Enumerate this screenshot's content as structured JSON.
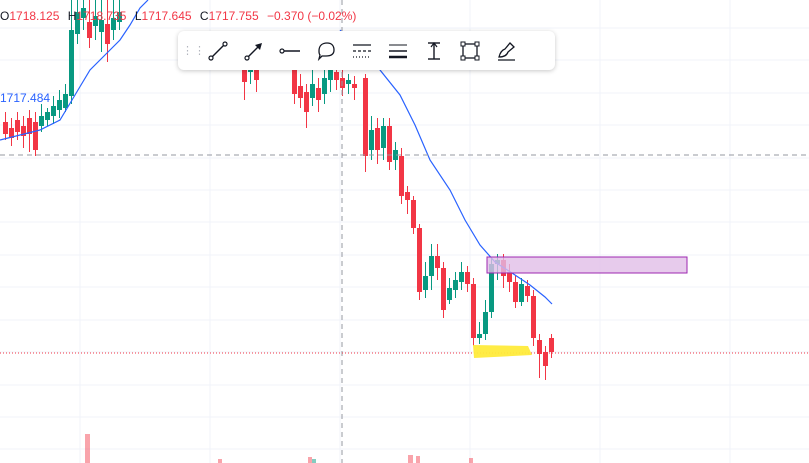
{
  "legend": {
    "o_key": "O",
    "o_val": "1718.125",
    "h_key": "H",
    "h_val": "1718.735",
    "l_key": "L",
    "l_val": "1717.645",
    "c_key": "C",
    "c_val": "1717.755",
    "change": "−0.370 (−0.02%)"
  },
  "ma_value": "1717.484",
  "colors": {
    "up": "#089981",
    "down": "#f23645",
    "ma": "#2962ff",
    "rectangle_fill": "#e1bee7",
    "rectangle_border": "#9c27b0",
    "highlight": "#ffeb3b",
    "grid": "#f0f3fa",
    "crosshair": "#9598a1"
  },
  "toolbar": {
    "tools": [
      {
        "name": "trend-line-icon"
      },
      {
        "name": "arrow-icon"
      },
      {
        "name": "horizontal-ray-icon"
      },
      {
        "name": "callout-icon"
      },
      {
        "name": "line-style-icon"
      },
      {
        "name": "line-width-icon"
      },
      {
        "name": "price-range-icon"
      },
      {
        "name": "select-rectangle-icon"
      },
      {
        "name": "brush-icon"
      }
    ]
  }
}
